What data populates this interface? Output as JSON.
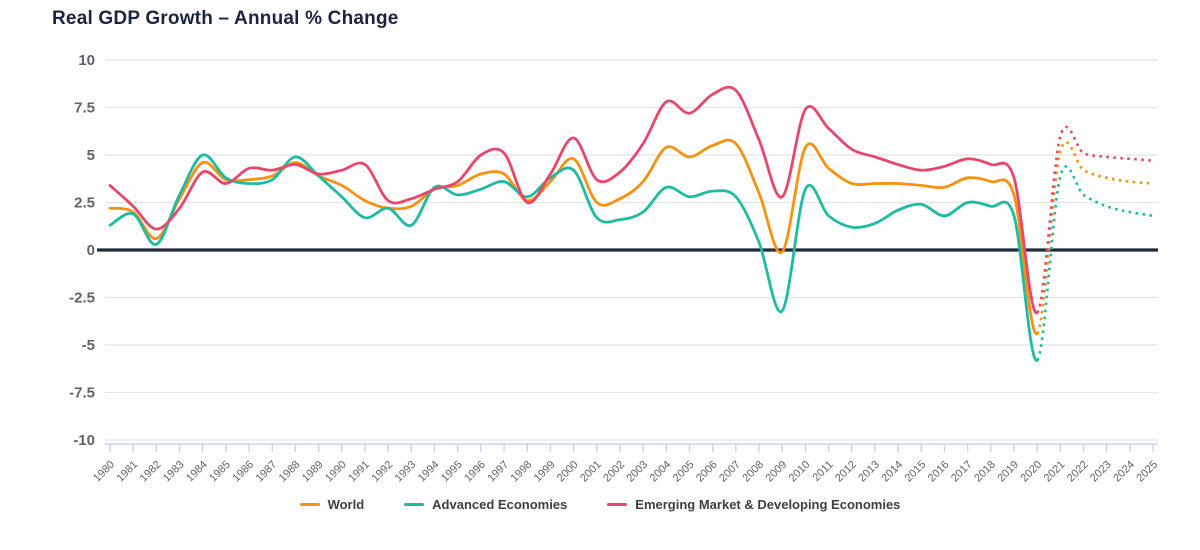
{
  "title": "Real GDP Growth – Annual % Change",
  "colors": {
    "world": "#F5920F",
    "advanced_economies": "#1DBCA2",
    "emde": "#E8476B",
    "title_text": "#1B2440",
    "zero_line": "#202B3D",
    "gridline": "#E4E4E4",
    "axis_line": "#C9D1ED",
    "axis_text": "#5F6368",
    "legend_text": "#3C4043"
  },
  "chart_data": {
    "type": "line",
    "title": "Real GDP Growth – Annual % Change",
    "xlabel": "",
    "ylabel": "",
    "ylim": [
      -10,
      10
    ],
    "yticks": [
      10,
      7.5,
      5,
      2.5,
      0,
      -2.5,
      -5,
      -7.5,
      -10
    ],
    "grid": true,
    "legend_position": "bottom",
    "forecast_start_year": 2020,
    "forecast_style": "dotted",
    "x": [
      1980,
      1981,
      1982,
      1983,
      1984,
      1985,
      1986,
      1987,
      1988,
      1989,
      1990,
      1991,
      1992,
      1993,
      1994,
      1995,
      1996,
      1997,
      1998,
      1999,
      2000,
      2001,
      2002,
      2003,
      2004,
      2005,
      2006,
      2007,
      2008,
      2009,
      2010,
      2011,
      2012,
      2013,
      2014,
      2015,
      2016,
      2017,
      2018,
      2019,
      2020,
      2021,
      2022,
      2023,
      2024,
      2025
    ],
    "series": [
      {
        "name": "World",
        "color": "#F5920F",
        "values": [
          2.2,
          2.0,
          0.6,
          2.7,
          4.6,
          3.7,
          3.7,
          3.9,
          4.6,
          3.9,
          3.4,
          2.6,
          2.2,
          2.3,
          3.2,
          3.4,
          4.0,
          4.0,
          2.6,
          3.6,
          4.8,
          2.5,
          2.7,
          3.6,
          5.4,
          4.9,
          5.5,
          5.6,
          3.0,
          -0.1,
          5.4,
          4.3,
          3.5,
          3.5,
          3.5,
          3.4,
          3.3,
          3.8,
          3.6,
          2.9,
          -4.4,
          5.2,
          4.2,
          3.8,
          3.6,
          3.5
        ]
      },
      {
        "name": "Advanced Economies",
        "color": "#1DBCA2",
        "values": [
          1.3,
          1.9,
          0.3,
          2.9,
          5.0,
          3.8,
          3.5,
          3.7,
          4.9,
          3.9,
          2.8,
          1.7,
          2.2,
          1.3,
          3.3,
          2.9,
          3.2,
          3.6,
          2.8,
          3.8,
          4.2,
          1.7,
          1.6,
          2.0,
          3.3,
          2.8,
          3.1,
          2.8,
          0.4,
          -3.2,
          3.2,
          1.8,
          1.2,
          1.4,
          2.1,
          2.4,
          1.8,
          2.5,
          2.3,
          1.8,
          -5.8,
          3.9,
          2.9,
          2.3,
          2.0,
          1.8
        ]
      },
      {
        "name": "Emerging Market & Developing Economies",
        "color": "#E8476B",
        "values": [
          3.4,
          2.3,
          1.1,
          2.2,
          4.1,
          3.5,
          4.3,
          4.2,
          4.5,
          4.0,
          4.2,
          4.5,
          2.6,
          2.7,
          3.2,
          3.6,
          5.0,
          5.1,
          2.5,
          4.0,
          5.9,
          3.7,
          4.1,
          5.6,
          7.8,
          7.2,
          8.2,
          8.4,
          5.8,
          2.8,
          7.4,
          6.4,
          5.3,
          4.9,
          4.5,
          4.2,
          4.4,
          4.8,
          4.5,
          3.8,
          -3.3,
          6.0,
          5.1,
          4.9,
          4.8,
          4.7
        ]
      }
    ]
  }
}
